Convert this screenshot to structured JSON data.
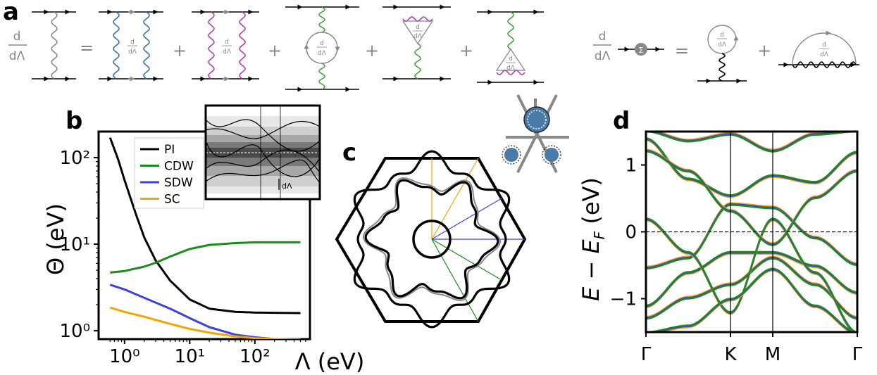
{
  "panels": {
    "a": "a",
    "b": "b",
    "c": "c",
    "d": "d"
  },
  "panel_a": {
    "frac_num": "d",
    "frac_den": "dΛ",
    "equals": "=",
    "plus": "+",
    "sigma": "Σ"
  },
  "panel_c": {
    "colors": {
      "fermi_surface": "#000000",
      "mean_field": "#888888",
      "sc_ray": "#f5a400",
      "sdw_ray": "#4040e0",
      "cdw_ray": "#1a8c1a"
    }
  },
  "chart_data": [
    {
      "type": "line",
      "panel": "b",
      "xlabel": "Λ (eV)",
      "ylabel": "Θ (eV)",
      "xscale": "log",
      "yscale": "log",
      "xlim": [
        0.4,
        700
      ],
      "ylim": [
        0.8,
        200
      ],
      "xticks": [
        1,
        10,
        100
      ],
      "xtick_labels": [
        "10⁰",
        "10¹",
        "10²"
      ],
      "yticks": [
        1,
        10,
        100
      ],
      "ytick_labels": [
        "10⁰",
        "10¹",
        "10²"
      ],
      "legend_position": "top-right",
      "inset_label": "dΛ",
      "series": [
        {
          "name": "PI",
          "color": "#000000",
          "x": [
            0.6,
            0.8,
            1,
            1.5,
            2,
            3,
            5,
            10,
            20,
            50,
            100,
            200,
            500
          ],
          "y": [
            170,
            95,
            55,
            22,
            12,
            6.5,
            3.8,
            2.3,
            1.8,
            1.65,
            1.62,
            1.61,
            1.6
          ]
        },
        {
          "name": "CDW",
          "color": "#1a8c1a",
          "x": [
            0.6,
            1,
            2,
            3,
            5,
            10,
            20,
            50,
            100,
            200,
            500
          ],
          "y": [
            4.7,
            4.9,
            5.5,
            6.1,
            7.2,
            8.8,
            9.8,
            10.3,
            10.5,
            10.5,
            10.5
          ]
        },
        {
          "name": "SDW",
          "color": "#4040e0",
          "x": [
            0.6,
            1,
            2,
            5,
            10,
            20,
            50,
            100,
            200,
            500
          ],
          "y": [
            3.4,
            3.0,
            2.4,
            1.8,
            1.4,
            1.1,
            0.9,
            0.84,
            0.8,
            0.79
          ]
        },
        {
          "name": "SC",
          "color": "#f5a400",
          "x": [
            0.6,
            1,
            2,
            5,
            10,
            20,
            50,
            100,
            200,
            500
          ],
          "y": [
            1.85,
            1.65,
            1.45,
            1.2,
            1.05,
            0.95,
            0.86,
            0.82,
            0.8,
            0.79
          ]
        }
      ]
    },
    {
      "type": "line",
      "panel": "d",
      "xlabel": "",
      "ylabel": "E − E_F (eV)",
      "ylim": [
        -1.5,
        1.5
      ],
      "yticks": [
        -1,
        0,
        1
      ],
      "ytick_labels": [
        "−1",
        "0",
        "1"
      ],
      "kpath_labels": [
        "Γ",
        "K",
        "M",
        "Γ"
      ],
      "kpath_positions": [
        0,
        1,
        1.5,
        2.5
      ],
      "fermi_level": 0,
      "series_colors": {
        "SC": "#f5a400",
        "SDW": "#4040e0",
        "CDW": "#1a8c1a"
      },
      "bands": [
        {
          "x": [
            0,
            0.5,
            1,
            1.5,
            2,
            2.5
          ],
          "y": [
            1.4,
            0.8,
            0.55,
            0.85,
            0.75,
            1.2
          ]
        },
        {
          "x": [
            0,
            0.5,
            1,
            1.5,
            2,
            2.5
          ],
          "y": [
            -0.55,
            -0.4,
            0.4,
            0.35,
            -0.1,
            -0.5
          ]
        },
        {
          "x": [
            0,
            0.5,
            1,
            1.5,
            2,
            2.5
          ],
          "y": [
            -1.1,
            -0.6,
            -0.3,
            -0.3,
            -0.5,
            -0.9
          ]
        },
        {
          "x": [
            0,
            0.5,
            1,
            1.5,
            2,
            2.5
          ],
          "y": [
            -1.3,
            -1.0,
            -0.8,
            -0.4,
            -0.8,
            -1.3
          ]
        },
        {
          "x": [
            0,
            0.5,
            1,
            1.5,
            2,
            2.5
          ],
          "y": [
            0.2,
            -0.3,
            -1.2,
            0.2,
            -0.6,
            -1.5
          ]
        },
        {
          "x": [
            0,
            0.5,
            1,
            1.5,
            2,
            2.5
          ],
          "y": [
            1.2,
            0.9,
            0.3,
            -0.2,
            0.5,
            0.9
          ]
        },
        {
          "x": [
            0,
            0.5,
            1,
            1.5,
            2,
            2.5
          ],
          "y": [
            -1.5,
            -1.4,
            -1.0,
            -0.55,
            -1.1,
            -1.5
          ]
        },
        {
          "x": [
            0,
            0.5,
            1,
            1.5,
            2,
            2.5
          ],
          "y": [
            1.5,
            1.35,
            1.45,
            1.2,
            1.45,
            1.5
          ]
        }
      ]
    }
  ]
}
